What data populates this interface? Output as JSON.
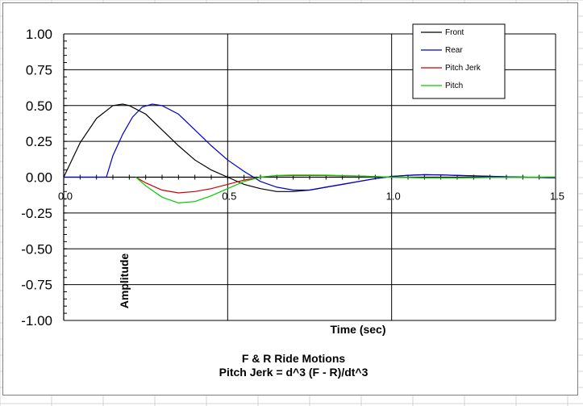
{
  "chart_data": {
    "type": "line",
    "title": "F & R Ride Motions",
    "subtitle": "Pitch Jerk = d^3 (F - R)/dt^3",
    "xlabel": "Time (sec)",
    "ylabel": "Amplitude",
    "xlim": [
      0,
      1.5
    ],
    "ylim": [
      -1,
      1
    ],
    "x_ticks": [
      "0.0",
      "0.5",
      "1.0",
      "1.5"
    ],
    "y_ticks": [
      "1.00",
      "0.75",
      "0.50",
      "0.25",
      "0.00",
      "-0.25",
      "-0.50",
      "-0.75",
      "-1.00"
    ],
    "grid": true,
    "legend_position": "top-right",
    "series": [
      {
        "name": "Front",
        "color": "#000000",
        "points": [
          [
            0.0,
            0.0
          ],
          [
            0.05,
            0.24
          ],
          [
            0.1,
            0.41
          ],
          [
            0.15,
            0.5
          ],
          [
            0.18,
            0.51
          ],
          [
            0.2,
            0.5
          ],
          [
            0.25,
            0.44
          ],
          [
            0.3,
            0.33
          ],
          [
            0.35,
            0.22
          ],
          [
            0.4,
            0.12
          ],
          [
            0.45,
            0.05
          ],
          [
            0.5,
            0.0
          ],
          [
            0.55,
            -0.05
          ],
          [
            0.6,
            -0.08
          ],
          [
            0.65,
            -0.1
          ],
          [
            0.7,
            -0.1
          ],
          [
            0.75,
            -0.09
          ],
          [
            0.8,
            -0.07
          ],
          [
            0.85,
            -0.05
          ],
          [
            0.9,
            -0.03
          ],
          [
            0.95,
            -0.01
          ],
          [
            1.0,
            0.005
          ],
          [
            1.05,
            0.013
          ],
          [
            1.1,
            0.018
          ],
          [
            1.15,
            0.016
          ],
          [
            1.2,
            0.012
          ],
          [
            1.3,
            0.005
          ],
          [
            1.4,
            0.0
          ],
          [
            1.5,
            -0.005
          ]
        ]
      },
      {
        "name": "Rear",
        "color": "#0000cc",
        "points": [
          [
            0.0,
            0.0
          ],
          [
            0.13,
            0.0
          ],
          [
            0.15,
            0.15
          ],
          [
            0.18,
            0.3
          ],
          [
            0.21,
            0.42
          ],
          [
            0.24,
            0.49
          ],
          [
            0.27,
            0.51
          ],
          [
            0.3,
            0.5
          ],
          [
            0.35,
            0.44
          ],
          [
            0.4,
            0.33
          ],
          [
            0.45,
            0.22
          ],
          [
            0.5,
            0.12
          ],
          [
            0.55,
            0.04
          ],
          [
            0.6,
            -0.03
          ],
          [
            0.65,
            -0.07
          ],
          [
            0.7,
            -0.09
          ],
          [
            0.75,
            -0.09
          ],
          [
            0.8,
            -0.07
          ],
          [
            0.85,
            -0.05
          ],
          [
            0.9,
            -0.03
          ],
          [
            0.95,
            -0.01
          ],
          [
            1.0,
            0.005
          ],
          [
            1.05,
            0.013
          ],
          [
            1.1,
            0.017
          ],
          [
            1.15,
            0.016
          ],
          [
            1.2,
            0.013
          ],
          [
            1.3,
            0.006
          ],
          [
            1.4,
            0.0
          ],
          [
            1.5,
            -0.005
          ]
        ]
      },
      {
        "name": "Pitch Jerk",
        "color": "#cc0000",
        "points": [
          [
            0.22,
            0.0
          ],
          [
            0.25,
            -0.04
          ],
          [
            0.3,
            -0.09
          ],
          [
            0.35,
            -0.11
          ],
          [
            0.4,
            -0.1
          ],
          [
            0.45,
            -0.08
          ],
          [
            0.5,
            -0.05
          ],
          [
            0.55,
            -0.02
          ],
          [
            0.6,
            0.0
          ],
          [
            0.65,
            0.01
          ],
          [
            0.7,
            0.012
          ],
          [
            0.8,
            0.012
          ],
          [
            0.9,
            0.008
          ],
          [
            1.0,
            0.0
          ],
          [
            1.1,
            -0.004
          ],
          [
            1.2,
            -0.004
          ],
          [
            1.3,
            -0.002
          ],
          [
            1.5,
            0.0
          ]
        ]
      },
      {
        "name": "Pitch",
        "color": "#00cc00",
        "points": [
          [
            0.22,
            0.0
          ],
          [
            0.25,
            -0.06
          ],
          [
            0.3,
            -0.14
          ],
          [
            0.35,
            -0.18
          ],
          [
            0.4,
            -0.17
          ],
          [
            0.45,
            -0.13
          ],
          [
            0.5,
            -0.08
          ],
          [
            0.55,
            -0.03
          ],
          [
            0.6,
            0.0
          ],
          [
            0.65,
            0.012
          ],
          [
            0.7,
            0.015
          ],
          [
            0.8,
            0.014
          ],
          [
            0.9,
            0.008
          ],
          [
            1.0,
            0.0
          ],
          [
            1.1,
            -0.005
          ],
          [
            1.2,
            -0.005
          ],
          [
            1.3,
            -0.002
          ],
          [
            1.5,
            0.0
          ]
        ]
      }
    ]
  }
}
